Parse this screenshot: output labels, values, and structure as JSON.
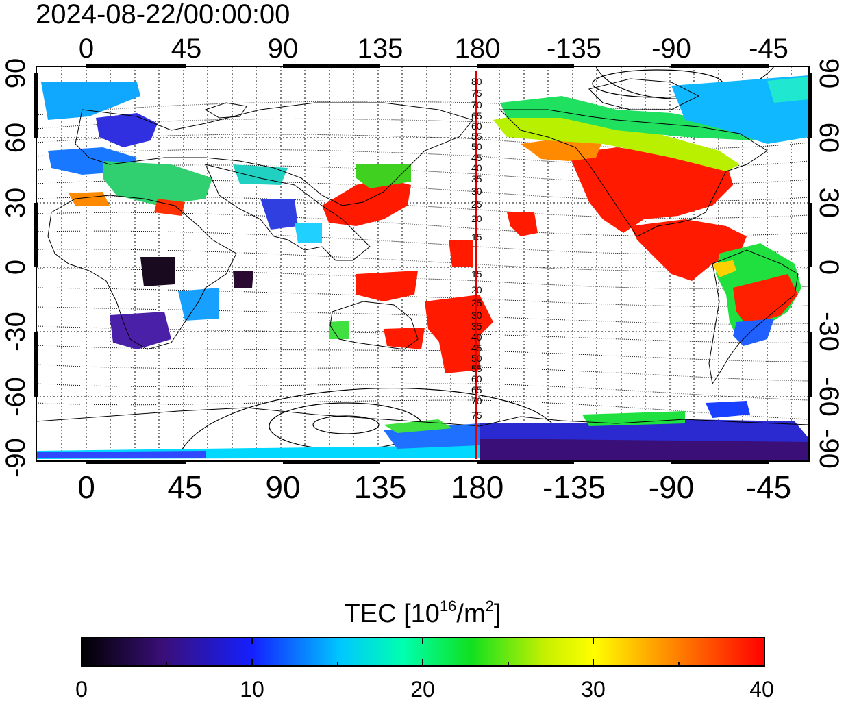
{
  "timestamp": "2024-08-22/00:00:00",
  "top_lon_labels": [
    "0",
    "45",
    "90",
    "135",
    "180",
    "-135",
    "-90",
    "-45"
  ],
  "bottom_lon_labels": [
    "0",
    "45",
    "90",
    "135",
    "180",
    "-135",
    "-90",
    "-45"
  ],
  "left_lat_labels": [
    "90",
    "60",
    "30",
    "0",
    "-30",
    "-60",
    "-90"
  ],
  "right_lat_labels": [
    "90",
    "60",
    "30",
    "0",
    "-30",
    "-60",
    "-90"
  ],
  "meridian_labels_north": [
    "80",
    "75",
    "70",
    "65",
    "60",
    "55",
    "50",
    "45",
    "40",
    "35",
    "30",
    "25",
    "20",
    "15"
  ],
  "meridian_labels_south": [
    "15",
    "20",
    "25",
    "30",
    "35",
    "40",
    "45",
    "50",
    "55",
    "60",
    "65",
    "70",
    "75"
  ],
  "colorbar": {
    "title_prefix": "TEC  [10",
    "title_sup1": "16",
    "title_mid": "/m",
    "title_sup2": "2",
    "title_suffix": "]",
    "tick_labels": [
      "0",
      "10",
      "20",
      "30",
      "40"
    ],
    "min": 0,
    "max": 40,
    "colors": [
      "#000000",
      "#3a0f78",
      "#1420ff",
      "#00c8ff",
      "#00ffb0",
      "#10e020",
      "#c8f000",
      "#ffff00",
      "#ff8c00",
      "#ff0000"
    ]
  },
  "meridian_marker_color": "#e00000"
}
